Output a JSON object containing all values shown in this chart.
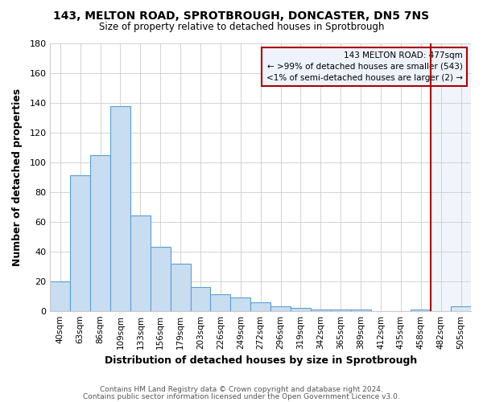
{
  "title": "143, MELTON ROAD, SPROTBROUGH, DONCASTER, DN5 7NS",
  "subtitle": "Size of property relative to detached houses in Sprotbrough",
  "xlabel": "Distribution of detached houses by size in Sprotbrough",
  "ylabel": "Number of detached properties",
  "footer_line1": "Contains HM Land Registry data © Crown copyright and database right 2024.",
  "footer_line2": "Contains public sector information licensed under the Open Government Licence v3.0.",
  "bin_labels": [
    "40sqm",
    "63sqm",
    "86sqm",
    "109sqm",
    "133sqm",
    "156sqm",
    "179sqm",
    "203sqm",
    "226sqm",
    "249sqm",
    "272sqm",
    "296sqm",
    "319sqm",
    "342sqm",
    "365sqm",
    "389sqm",
    "412sqm",
    "435sqm",
    "458sqm",
    "482sqm",
    "505sqm"
  ],
  "bar_heights": [
    20,
    91,
    105,
    138,
    64,
    43,
    32,
    16,
    11,
    9,
    6,
    3,
    2,
    1,
    1,
    1,
    0,
    0,
    1,
    0,
    3
  ],
  "bar_fill_color": "#c9ddf0",
  "bar_edge_color": "#5a9fd4",
  "highlight_fill_color": "#dce8f5",
  "highlight_edge_color": "#5a9fd4",
  "red_line_color": "#aa0000",
  "red_line_bin_index": 19,
  "annotation_line1": "143 MELTON ROAD: 477sqm",
  "annotation_line2": "← >99% of detached houses are smaller (543)",
  "annotation_line3": "<1% of semi-detached houses are larger (2) →",
  "annotation_box_facecolor": "#eef3fb",
  "annotation_box_edgecolor": "#aa0000",
  "ylim": [
    0,
    180
  ],
  "yticks": [
    0,
    20,
    40,
    60,
    80,
    100,
    120,
    140,
    160,
    180
  ],
  "grid_color": "#cccccc",
  "num_bins": 21
}
